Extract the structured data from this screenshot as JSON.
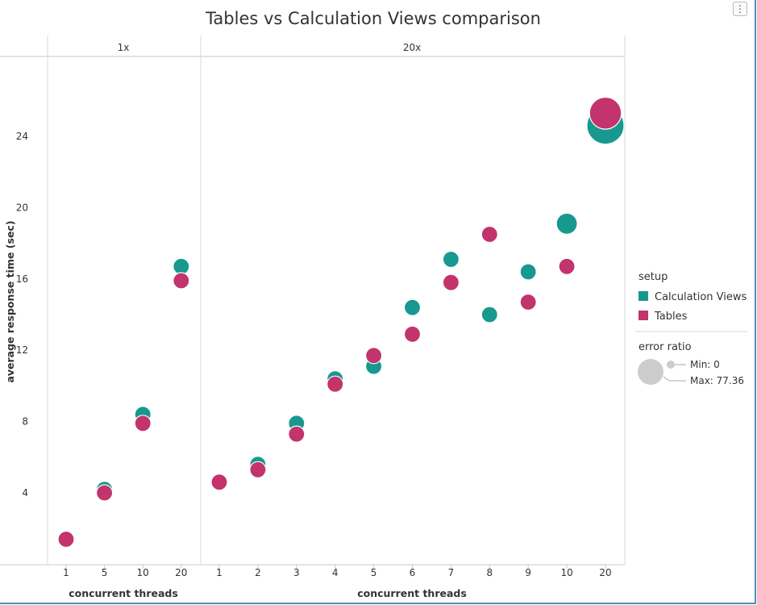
{
  "chart_data": {
    "type": "scatter",
    "title": "Tables vs Calculation Views comparison",
    "ylabel": "average response time (sec)",
    "xlabel": "concurrent threads",
    "ylim": [
      0,
      28
    ],
    "yticks": [
      4,
      8,
      12,
      16,
      20,
      24
    ],
    "size_encoding": "error ratio",
    "facets": [
      {
        "label": "1x",
        "categories": [
          "1",
          "5",
          "10",
          "20"
        ],
        "series": [
          {
            "name": "Calculation Views",
            "color": "#17998f",
            "values": [
              1.4,
              4.2,
              8.4,
              16.7
            ],
            "error_ratio": [
              0,
              0,
              0,
              0
            ]
          },
          {
            "name": "Tables",
            "color": "#c2346b",
            "values": [
              1.4,
              4.0,
              7.9,
              15.9
            ],
            "error_ratio": [
              0,
              0,
              0,
              0
            ]
          }
        ]
      },
      {
        "label": "20x",
        "categories": [
          "1",
          "2",
          "3",
          "4",
          "5",
          "6",
          "7",
          "8",
          "9",
          "10",
          "20"
        ],
        "series": [
          {
            "name": "Calculation Views",
            "color": "#17998f",
            "values": [
              4.6,
              5.6,
              7.9,
              10.4,
              11.1,
              14.4,
              17.1,
              14.0,
              16.4,
              19.1,
              24.6
            ],
            "error_ratio": [
              0,
              0,
              0,
              0,
              0,
              0,
              0,
              0,
              0,
              4,
              77.36
            ]
          },
          {
            "name": "Tables",
            "color": "#c2346b",
            "values": [
              4.6,
              5.3,
              7.3,
              10.1,
              11.7,
              12.9,
              15.8,
              18.5,
              14.7,
              16.7,
              25.3
            ],
            "error_ratio": [
              0,
              0,
              0,
              0,
              0,
              0,
              0,
              0,
              0,
              0,
              44
            ]
          }
        ]
      }
    ],
    "legend": {
      "color_title": "setup",
      "size_title": "error ratio",
      "min_label": "Min: 0",
      "max_label": "Max: 77.36"
    }
  },
  "menu_button": {
    "icon": "kebab-menu-icon",
    "glyph": "⋮"
  },
  "colors": {
    "grid": "#d8d8d8",
    "axis": "#c8c8c8",
    "frame": "#4a90c8",
    "size_legend": "#cccccc"
  }
}
